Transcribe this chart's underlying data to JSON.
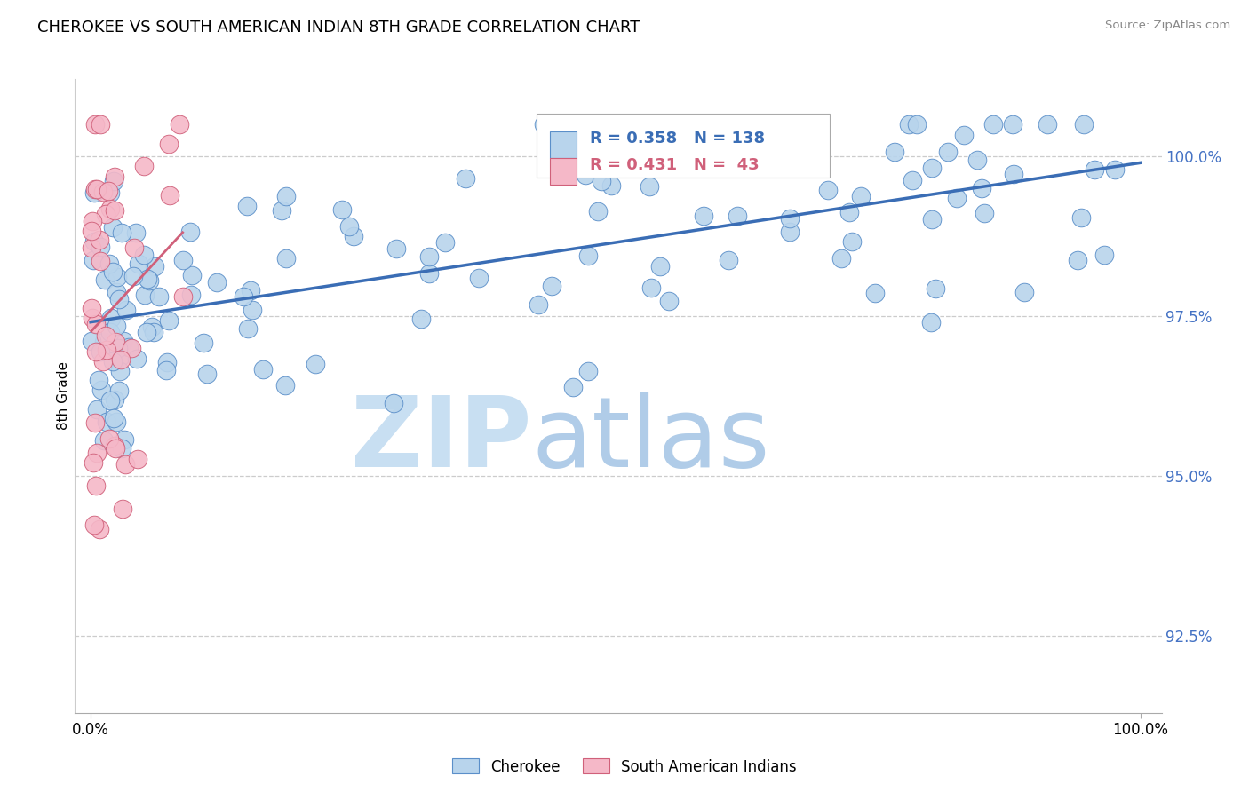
{
  "title": "CHEROKEE VS SOUTH AMERICAN INDIAN 8TH GRADE CORRELATION CHART",
  "source": "Source: ZipAtlas.com",
  "ylabel": "8th Grade",
  "y_ticks": [
    92.5,
    95.0,
    97.5,
    100.0
  ],
  "y_tick_labels": [
    "92.5%",
    "95.0%",
    "97.5%",
    "100.0%"
  ],
  "xlim": [
    -1.5,
    102.0
  ],
  "ylim": [
    91.3,
    101.2
  ],
  "cherokee_R": 0.358,
  "cherokee_N": 138,
  "sa_indian_R": 0.431,
  "sa_indian_N": 43,
  "cherokee_color": "#b8d4ec",
  "cherokee_edge": "#5b8fc9",
  "sa_indian_color": "#f5b8c8",
  "sa_indian_edge": "#d0607a",
  "cherokee_line_color": "#3a6db5",
  "sa_indian_line_color": "#d0607a",
  "legend_r_color": "#3a6db5",
  "legend_n_color": "#3a6db5",
  "sa_legend_r_color": "#d0607a",
  "watermark_zip_color": "#c8dff2",
  "watermark_atlas_color": "#b0cce8",
  "right_tick_color": "#4472c4",
  "background": "#ffffff",
  "grid_color": "#cccccc",
  "grid_linestyle": "--",
  "bottom_legend_labels": [
    "Cherokee",
    "South American Indians"
  ]
}
